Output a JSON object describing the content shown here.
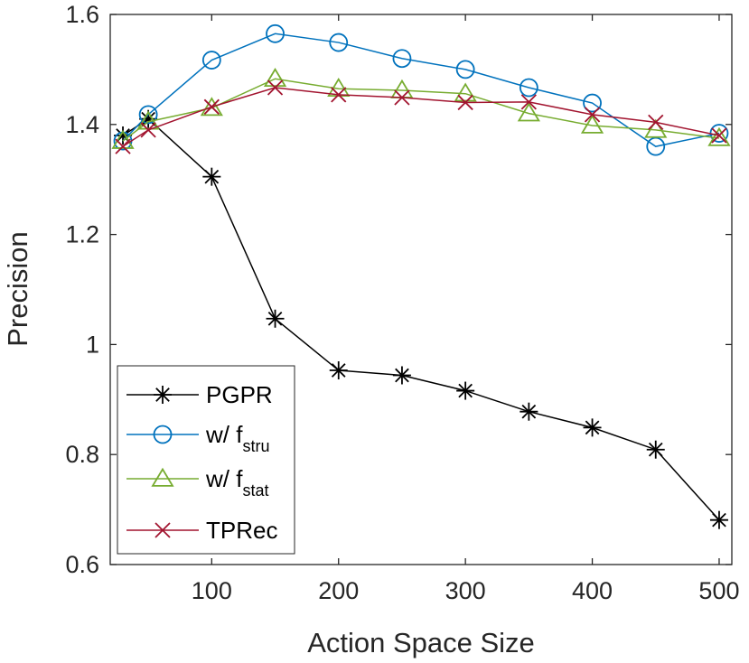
{
  "chart_data": {
    "type": "line",
    "xlabel": "Action Space Size",
    "ylabel": "Precision",
    "xlim": [
      20,
      510
    ],
    "ylim": [
      0.6,
      1.6
    ],
    "xticks": [
      100,
      200,
      300,
      400,
      500
    ],
    "xtick_labels": [
      "100",
      "200",
      "300",
      "400",
      "500"
    ],
    "yticks": [
      0.6,
      0.8,
      1.0,
      1.2,
      1.4,
      1.6
    ],
    "ytick_labels": [
      "0.6",
      "0.8",
      "1",
      "1.2",
      "1.4",
      "1.6"
    ],
    "grid": false,
    "legend_position": "bottom-left",
    "x": [
      30,
      50,
      100,
      150,
      200,
      250,
      300,
      350,
      400,
      450,
      500
    ],
    "series": [
      {
        "name": "PGPR",
        "label_main": "PGPR",
        "label_sub": "",
        "color": "#000000",
        "marker": "asterisk",
        "values": [
          1.38,
          1.41,
          1.305,
          1.047,
          0.953,
          0.944,
          0.916,
          0.878,
          0.849,
          0.809,
          0.681
        ]
      },
      {
        "name": "w/ f_stru",
        "label_main": "w/ f",
        "label_sub": "stru",
        "color": "#0072BD",
        "marker": "circle",
        "values": [
          1.37,
          1.418,
          1.517,
          1.565,
          1.549,
          1.52,
          1.5,
          1.467,
          1.439,
          1.36,
          1.384
        ]
      },
      {
        "name": "w/ f_stat",
        "label_main": "w/ f",
        "label_sub": "stat",
        "color": "#77AC30",
        "marker": "triangle",
        "values": [
          1.37,
          1.405,
          1.43,
          1.483,
          1.465,
          1.462,
          1.456,
          1.42,
          1.398,
          1.39,
          1.375
        ]
      },
      {
        "name": "TPRec",
        "label_main": "TPRec",
        "label_sub": "",
        "color": "#A2142F",
        "marker": "x",
        "values": [
          1.36,
          1.39,
          1.432,
          1.467,
          1.454,
          1.449,
          1.44,
          1.441,
          1.418,
          1.404,
          1.38
        ]
      }
    ]
  }
}
